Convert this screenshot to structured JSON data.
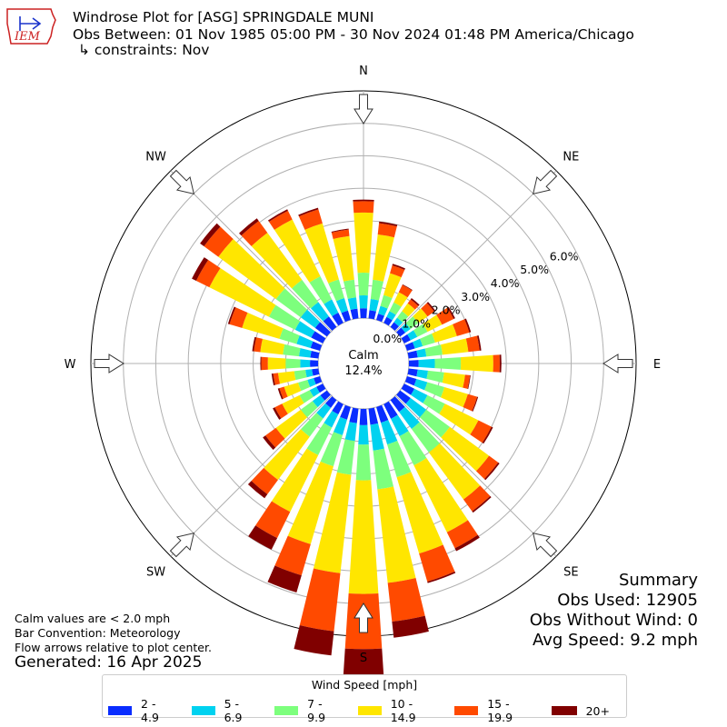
{
  "header": {
    "title_line1": "Windrose Plot for [ASG] SPRINGDALE MUNI",
    "title_line2": "Obs Between: 01 Nov 1985 05:00 PM - 30 Nov 2024 01:48 PM America/Chicago",
    "title_line3": "↳ constraints: Nov",
    "logo_text": "IEM"
  },
  "notes": {
    "line1": "Calm values are < 2.0 mph",
    "line2": "Bar Convention: Meteorology",
    "line3": "Flow arrows relative to plot center.",
    "generated": "Generated: 16 Apr 2025"
  },
  "summary": {
    "heading": "Summary",
    "obs_used": "Obs Used: 12905",
    "obs_without_wind": "Obs Without Wind: 0",
    "avg_speed": "Avg Speed: 9.2 mph"
  },
  "legend": {
    "title": "Wind Speed [mph]",
    "items": [
      {
        "label": "2 - 4.9",
        "color": "#0a2dff"
      },
      {
        "label": "5 - 6.9",
        "color": "#00d2f0"
      },
      {
        "label": "7 - 9.9",
        "color": "#7dff7d"
      },
      {
        "label": "10 - 14.9",
        "color": "#ffe600"
      },
      {
        "label": "15 - 19.9",
        "color": "#ff4a00"
      },
      {
        "label": "20+",
        "color": "#800000"
      }
    ]
  },
  "chart_data": {
    "type": "windrose",
    "center_label": "Calm",
    "calm_value": "12.4%",
    "radial_ticks": [
      "0.0%",
      "1.0%",
      "2.0%",
      "3.0%",
      "4.0%",
      "5.0%",
      "6.0%"
    ],
    "radial_max": 7.0,
    "compass_labels": [
      "N",
      "NE",
      "E",
      "SE",
      "S",
      "SW",
      "W",
      "NW"
    ],
    "speed_bins": [
      "2 - 4.9",
      "5 - 6.9",
      "7 - 9.9",
      "10 - 14.9",
      "15 - 19.9",
      "20+"
    ],
    "direction_degrees": [
      0,
      10,
      20,
      30,
      40,
      50,
      60,
      70,
      80,
      90,
      100,
      110,
      120,
      130,
      140,
      150,
      160,
      170,
      180,
      190,
      200,
      210,
      220,
      230,
      240,
      250,
      260,
      270,
      280,
      290,
      300,
      310,
      320,
      330,
      340,
      350
    ],
    "cumulative_percent": [
      [
        0.3,
        0.7,
        1.4,
        3.25,
        3.6,
        3.65
      ],
      [
        0.25,
        0.6,
        1.2,
        2.6,
        2.95,
        3.0
      ],
      [
        0.2,
        0.45,
        0.8,
        1.5,
        1.75,
        1.8
      ],
      [
        0.2,
        0.4,
        0.7,
        1.05,
        1.3,
        1.32
      ],
      [
        0.18,
        0.35,
        0.6,
        0.9,
        1.05,
        1.1
      ],
      [
        0.2,
        0.4,
        0.7,
        1.05,
        1.3,
        1.35
      ],
      [
        0.22,
        0.45,
        0.8,
        1.3,
        1.7,
        1.75
      ],
      [
        0.25,
        0.5,
        0.9,
        1.6,
        2.0,
        2.05
      ],
      [
        0.28,
        0.55,
        1.05,
        1.85,
        2.2,
        2.25
      ],
      [
        0.3,
        0.8,
        1.6,
        2.6,
        2.8,
        2.85
      ],
      [
        0.28,
        0.6,
        1.1,
        1.75,
        1.9,
        1.92
      ],
      [
        0.3,
        0.65,
        1.2,
        1.95,
        2.25,
        2.28
      ],
      [
        0.35,
        0.8,
        1.4,
        2.55,
        3.0,
        3.05
      ],
      [
        0.4,
        1.0,
        1.9,
        3.4,
        3.75,
        3.8
      ],
      [
        0.45,
        1.1,
        2.0,
        3.8,
        4.25,
        4.3
      ],
      [
        0.5,
        1.1,
        2.1,
        4.4,
        4.95,
        5.05
      ],
      [
        0.5,
        1.2,
        2.25,
        4.7,
        5.6,
        5.65
      ],
      [
        0.5,
        1.3,
        2.5,
        5.4,
        6.6,
        7.1
      ],
      [
        0.5,
        1.1,
        2.2,
        5.7,
        7.4,
        8.6
      ],
      [
        0.45,
        1.0,
        2.05,
        5.1,
        6.9,
        7.65
      ],
      [
        0.4,
        0.9,
        1.9,
        4.4,
        5.4,
        5.95
      ],
      [
        0.35,
        0.8,
        1.75,
        3.7,
        4.6,
        5.0
      ],
      [
        0.3,
        0.7,
        1.4,
        3.05,
        3.6,
        3.75
      ],
      [
        0.25,
        0.55,
        1.0,
        1.95,
        2.35,
        2.45
      ],
      [
        0.22,
        0.45,
        0.8,
        1.4,
        1.65,
        1.72
      ],
      [
        0.2,
        0.4,
        0.7,
        1.15,
        1.3,
        1.35
      ],
      [
        0.2,
        0.4,
        0.75,
        1.25,
        1.4,
        1.45
      ],
      [
        0.25,
        0.55,
        1.0,
        1.55,
        1.75,
        1.78
      ],
      [
        0.25,
        0.6,
        1.1,
        1.8,
        2.0,
        2.05
      ],
      [
        0.3,
        0.75,
        1.3,
        2.5,
        2.9,
        2.95
      ],
      [
        0.4,
        0.95,
        1.85,
        3.9,
        4.35,
        4.5
      ],
      [
        0.45,
        1.0,
        1.95,
        4.15,
        4.7,
        4.85
      ],
      [
        0.4,
        0.95,
        1.8,
        3.6,
        4.05,
        4.15
      ],
      [
        0.35,
        0.8,
        1.6,
        3.55,
        3.85,
        3.9
      ],
      [
        0.3,
        0.7,
        1.3,
        3.1,
        3.55,
        3.6
      ],
      [
        0.3,
        0.65,
        1.2,
        2.55,
        2.75,
        2.78
      ]
    ]
  }
}
